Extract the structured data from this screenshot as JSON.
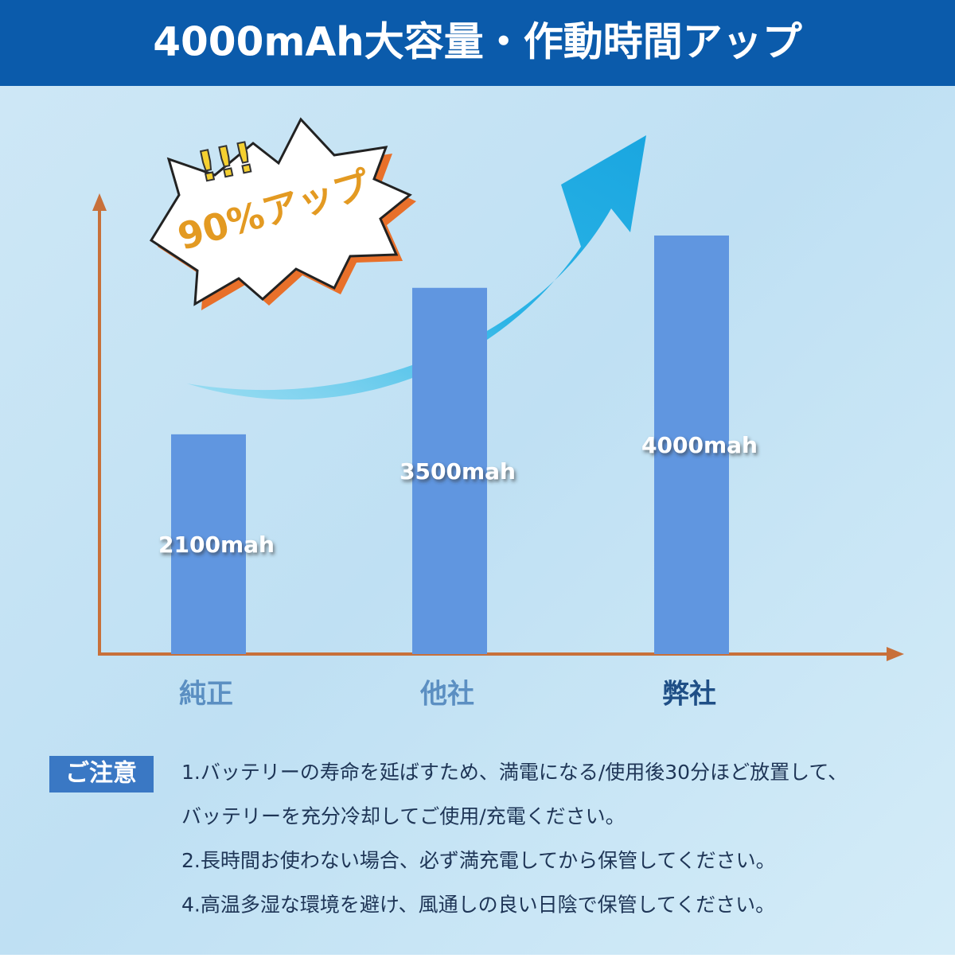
{
  "chart_data": {
    "type": "bar",
    "title": "4000mAh大容量・作動時間アップ",
    "annotation": "90%アップ",
    "exclamation": "!!!",
    "categories": [
      "純正",
      "他社",
      "弊社"
    ],
    "values": [
      2100,
      3500,
      4000
    ],
    "value_labels": [
      "2100mah",
      "3500mah",
      "4000mah"
    ],
    "color": "#6096e0"
  },
  "notes": {
    "label": "ご注意",
    "lines": [
      "1.バッテリーの寿命を延ばすため、満電になる/使用後30分ほど放置して、",
      "バッテリーを充分冷却してご使用/充電ください。",
      "2.長時間お使わない場合、必ず満充電してから保管してください。",
      "4.高温多湿な環境を避け、風通しの良い日陰で保管してください。"
    ]
  }
}
